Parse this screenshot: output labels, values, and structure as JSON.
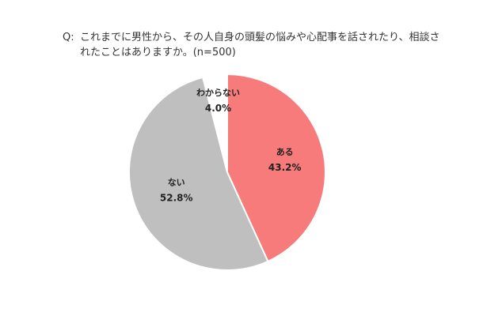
{
  "question": {
    "prefix": "Q:",
    "text": "これまでに男性から、その人自身の頭髪の悩みや心配事を話されたり、相談されたことはありますか。(n=500)"
  },
  "chart_data": {
    "type": "pie",
    "title": "これまでに男性から、その人自身の頭髪の悩みや心配事を話されたり、相談されたことはありますか。(n=500)",
    "n": 500,
    "start_angle": "12 o'clock",
    "direction": "clockwise",
    "slices": [
      {
        "label": "ある",
        "value": 43.2,
        "display": "43.2%",
        "color": "#f77b7b"
      },
      {
        "label": "ない",
        "value": 52.8,
        "display": "52.8%",
        "color": "#bfbfbf"
      },
      {
        "label": "わからない",
        "value": 4.0,
        "display": "4.0%",
        "color": "#ffffff"
      }
    ]
  }
}
